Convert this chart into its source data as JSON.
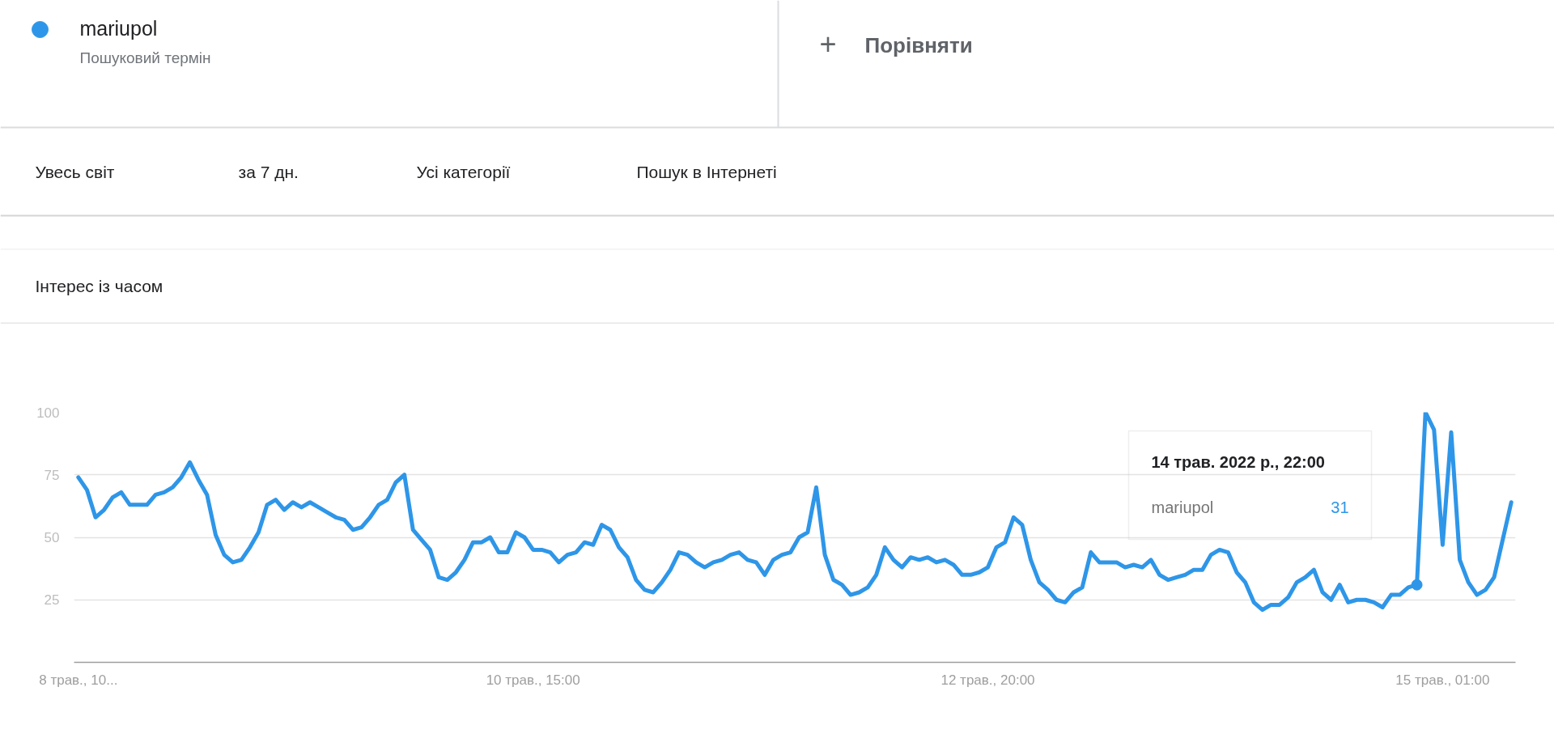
{
  "chart_data": {
    "type": "line",
    "title": "Інтерес із часом",
    "annotations": [
      "Пошуковий термін",
      "+",
      "Порівняти",
      "Увесь світ",
      "за 7 дн.",
      "Усі категорії",
      "Пошук в Інтернеті",
      "14 трав. 2022 р., 22:00",
      "31"
    ],
    "x": [
      "2022-05-08T10:00",
      "2022-05-08T11:00",
      "2022-05-08T12:00",
      "2022-05-08T13:00",
      "2022-05-08T14:00",
      "2022-05-08T15:00",
      "2022-05-08T16:00",
      "2022-05-08T17:00",
      "2022-05-08T18:00",
      "2022-05-08T19:00",
      "2022-05-08T20:00",
      "2022-05-08T21:00",
      "2022-05-08T22:00",
      "2022-05-08T23:00",
      "2022-05-09T00:00",
      "2022-05-09T01:00",
      "2022-05-09T02:00",
      "2022-05-09T03:00",
      "2022-05-09T04:00",
      "2022-05-09T05:00",
      "2022-05-09T06:00",
      "2022-05-09T07:00",
      "2022-05-09T08:00",
      "2022-05-09T09:00",
      "2022-05-09T10:00",
      "2022-05-09T11:00",
      "2022-05-09T12:00",
      "2022-05-09T13:00",
      "2022-05-09T14:00",
      "2022-05-09T15:00",
      "2022-05-09T16:00",
      "2022-05-09T17:00",
      "2022-05-09T18:00",
      "2022-05-09T19:00",
      "2022-05-09T20:00",
      "2022-05-09T21:00",
      "2022-05-09T22:00",
      "2022-05-09T23:00",
      "2022-05-10T00:00",
      "2022-05-10T01:00",
      "2022-05-10T02:00",
      "2022-05-10T03:00",
      "2022-05-10T04:00",
      "2022-05-10T05:00",
      "2022-05-10T06:00",
      "2022-05-10T07:00",
      "2022-05-10T08:00",
      "2022-05-10T09:00",
      "2022-05-10T10:00",
      "2022-05-10T11:00",
      "2022-05-10T12:00",
      "2022-05-10T13:00",
      "2022-05-10T14:00",
      "2022-05-10T15:00",
      "2022-05-10T16:00",
      "2022-05-10T17:00",
      "2022-05-10T18:00",
      "2022-05-10T19:00",
      "2022-05-10T20:00",
      "2022-05-10T21:00",
      "2022-05-10T22:00",
      "2022-05-10T23:00",
      "2022-05-11T00:00",
      "2022-05-11T01:00",
      "2022-05-11T02:00",
      "2022-05-11T03:00",
      "2022-05-11T04:00",
      "2022-05-11T05:00",
      "2022-05-11T06:00",
      "2022-05-11T07:00",
      "2022-05-11T08:00",
      "2022-05-11T09:00",
      "2022-05-11T10:00",
      "2022-05-11T11:00",
      "2022-05-11T12:00",
      "2022-05-11T13:00",
      "2022-05-11T14:00",
      "2022-05-11T15:00",
      "2022-05-11T16:00",
      "2022-05-11T17:00",
      "2022-05-11T18:00",
      "2022-05-11T19:00",
      "2022-05-11T20:00",
      "2022-05-11T21:00",
      "2022-05-11T22:00",
      "2022-05-11T23:00",
      "2022-05-12T00:00",
      "2022-05-12T01:00",
      "2022-05-12T02:00",
      "2022-05-12T03:00",
      "2022-05-12T04:00",
      "2022-05-12T05:00",
      "2022-05-12T06:00",
      "2022-05-12T07:00",
      "2022-05-12T08:00",
      "2022-05-12T09:00",
      "2022-05-12T10:00",
      "2022-05-12T11:00",
      "2022-05-12T12:00",
      "2022-05-12T13:00",
      "2022-05-12T14:00",
      "2022-05-12T15:00",
      "2022-05-12T16:00",
      "2022-05-12T17:00",
      "2022-05-12T18:00",
      "2022-05-12T19:00",
      "2022-05-12T20:00",
      "2022-05-12T21:00",
      "2022-05-12T22:00",
      "2022-05-12T23:00",
      "2022-05-13T00:00",
      "2022-05-13T01:00",
      "2022-05-13T02:00",
      "2022-05-13T03:00",
      "2022-05-13T04:00",
      "2022-05-13T05:00",
      "2022-05-13T06:00",
      "2022-05-13T07:00",
      "2022-05-13T08:00",
      "2022-05-13T09:00",
      "2022-05-13T10:00",
      "2022-05-13T11:00",
      "2022-05-13T12:00",
      "2022-05-13T13:00",
      "2022-05-13T14:00",
      "2022-05-13T15:00",
      "2022-05-13T16:00",
      "2022-05-13T17:00",
      "2022-05-13T18:00",
      "2022-05-13T19:00",
      "2022-05-13T20:00",
      "2022-05-13T21:00",
      "2022-05-13T22:00",
      "2022-05-13T23:00",
      "2022-05-14T00:00",
      "2022-05-14T01:00",
      "2022-05-14T02:00",
      "2022-05-14T03:00",
      "2022-05-14T04:00",
      "2022-05-14T05:00",
      "2022-05-14T06:00",
      "2022-05-14T07:00",
      "2022-05-14T08:00",
      "2022-05-14T09:00",
      "2022-05-14T10:00",
      "2022-05-14T11:00",
      "2022-05-14T12:00",
      "2022-05-14T13:00",
      "2022-05-14T14:00",
      "2022-05-14T15:00",
      "2022-05-14T16:00",
      "2022-05-14T17:00",
      "2022-05-14T18:00",
      "2022-05-14T19:00",
      "2022-05-14T20:00",
      "2022-05-14T21:00",
      "2022-05-14T22:00",
      "2022-05-14T23:00",
      "2022-05-15T00:00",
      "2022-05-15T01:00",
      "2022-05-15T02:00",
      "2022-05-15T03:00",
      "2022-05-15T04:00",
      "2022-05-15T05:00",
      "2022-05-15T06:00",
      "2022-05-15T07:00",
      "2022-05-15T08:00",
      "2022-05-15T09:00"
    ],
    "series": [
      {
        "name": "mariupol",
        "color": "#2e96e8",
        "values": [
          74,
          69,
          58,
          61,
          66,
          68,
          63,
          63,
          63,
          67,
          68,
          70,
          74,
          80,
          73,
          67,
          51,
          43,
          40,
          41,
          46,
          52,
          63,
          65,
          61,
          64,
          62,
          64,
          62,
          60,
          58,
          57,
          53,
          54,
          58,
          63,
          65,
          72,
          75,
          53,
          49,
          45,
          34,
          33,
          36,
          41,
          48,
          48,
          50,
          44,
          44,
          52,
          50,
          45,
          45,
          44,
          40,
          43,
          44,
          48,
          47,
          55,
          53,
          46,
          42,
          33,
          29,
          28,
          32,
          37,
          44,
          43,
          40,
          38,
          40,
          41,
          43,
          44,
          41,
          40,
          35,
          41,
          43,
          44,
          50,
          52,
          70,
          43,
          33,
          31,
          27,
          28,
          30,
          35,
          46,
          41,
          38,
          42,
          41,
          42,
          40,
          41,
          39,
          35,
          35,
          36,
          38,
          46,
          48,
          58,
          55,
          41,
          32,
          29,
          25,
          24,
          28,
          30,
          44,
          40,
          40,
          40,
          38,
          39,
          38,
          41,
          35,
          33,
          34,
          35,
          37,
          37,
          43,
          45,
          44,
          36,
          32,
          24,
          21,
          23,
          23,
          26,
          32,
          34,
          37,
          28,
          25,
          31,
          24,
          25,
          25,
          24,
          22,
          27,
          27,
          30,
          31,
          100,
          93,
          47,
          92,
          41,
          32,
          27,
          29,
          34,
          49,
          64
        ]
      },
      {
        "type": "scatter",
        "color": "#2e96e8",
        "marker": "circle",
        "x": [
          "2022-05-14T22:00"
        ],
        "values": [
          31
        ]
      }
    ],
    "xlim": [
      "2022-05-08T09:30",
      "2022-05-15T09:30"
    ],
    "xticks": [
      {
        "value": "2022-05-08T10:00",
        "label": "8 трав., 10..."
      },
      {
        "value": "2022-05-10T15:00",
        "label": "10 трав., 15:00"
      },
      {
        "value": "2022-05-12T20:00",
        "label": "12 трав., 20:00"
      },
      {
        "value": "2022-05-15T01:00",
        "label": "15 трав., 01:00"
      }
    ],
    "ylim": [
      0,
      100
    ],
    "yticks": [
      25,
      50,
      75,
      100
    ],
    "grid": "y",
    "legend": "top left"
  }
}
